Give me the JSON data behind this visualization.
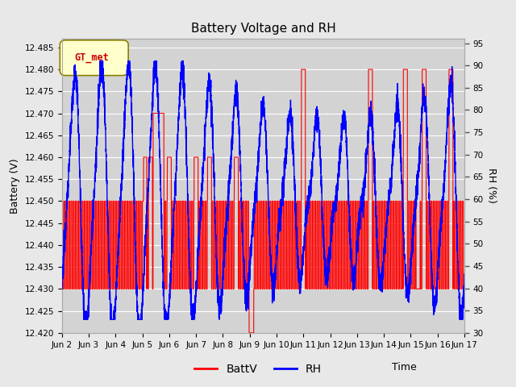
{
  "title": "Battery Voltage and RH",
  "xlabel": "Time",
  "ylabel_left": "Battery (V)",
  "ylabel_right": "RH (%)",
  "legend_label": "GT_met",
  "legend_box_facecolor": "#ffffcc",
  "legend_box_edgecolor": "#8B8000",
  "fig_facecolor": "#e8e8e8",
  "axes_facecolor": "#d3d3d3",
  "grid_color": "#ffffff",
  "x_tick_labels": [
    "Jun 2",
    "Jun 3",
    "Jun 4",
    "Jun 5",
    "Jun 6",
    "Jun 7",
    "Jun 8",
    "Jun 9",
    "Jun\n10",
    "Jun\n11",
    "Jun\n12",
    "Jun\n13",
    "Jun\n14",
    "Jun\n15",
    "Jun\n16",
    "Jun\n17"
  ],
  "x_tick_labels_raw": [
    "Jun 2",
    "Jun 3",
    "Jun 4",
    "Jun 5",
    "Jun 6",
    "Jun 7",
    "Jun 8",
    "Jun 9",
    "Jun 10",
    "Jun 11",
    "Jun 12",
    "Jun 13",
    "Jun 14",
    "Jun 15",
    "Jun 16",
    "Jun 17"
  ],
  "ylim_left": [
    12.42,
    12.487
  ],
  "ylim_right": [
    30,
    96
  ],
  "y_ticks_left": [
    12.42,
    12.425,
    12.43,
    12.435,
    12.44,
    12.445,
    12.45,
    12.455,
    12.46,
    12.465,
    12.47,
    12.475,
    12.48,
    12.485
  ],
  "y_ticks_right": [
    30,
    35,
    40,
    45,
    50,
    55,
    60,
    65,
    70,
    75,
    80,
    85,
    90,
    95
  ],
  "batt_color": "#ff0000",
  "rh_color": "#0000ff",
  "series_labels": [
    "BattV",
    "RH"
  ]
}
